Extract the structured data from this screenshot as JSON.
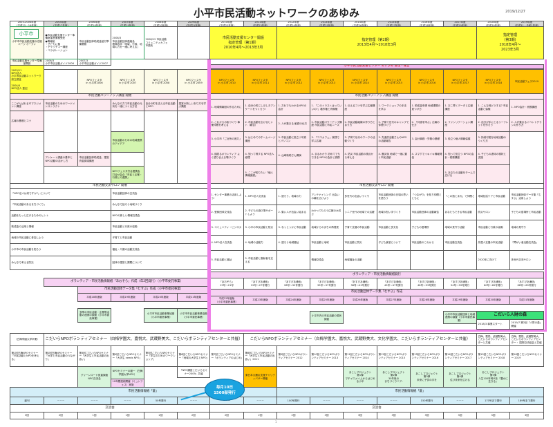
{
  "title": "小平市民活動ネットワークのあゆみ",
  "date": "2019/12/27",
  "years": [
    "2003-2004年度\n(平成15・16年度)",
    "2005年度\n(平成17年度)",
    "2006年度\n(平成18年度)",
    "2007年度\n(平成19年度)",
    "2008年度\n(平成20年度)",
    "2009年度\n(平成21年度)",
    "2010年度\n(平成22年度)",
    "2011年度\n(平成23年度)",
    "2012年度\n(平成24年度)",
    "2013年度\n(平成25年度)",
    "2014年度\n(平成26年度)",
    "2015年度\n(平成27年度)",
    "2016年度\n(平成28年度)",
    "2017年度\n(平成29年度)",
    "2018年度\n(平成30年度)",
    "2019年度\n(平成31・令和1年度)"
  ],
  "top": {
    "logo": "小平市",
    "logo_caption": "小平市市民活動支援の応援ページ オープン",
    "c1": "●市民活動支援センター準備室運営業務受託\n●情報紙\n・子どもに集\n・チャッチコー講座\n・コラボレーション",
    "c2": "市民活動団体助成金給付準備業務",
    "c3": "2008/3\n市民活動団体連絡会\n基準答申「地域、行政、地域の力を一緒に考える」",
    "c4": "2008/12 市民活動\nコミュニティカフェ\n市委託",
    "prep": "市民活動支援センター準備室開設",
    "prep1": "2006/3\n小平市民活動ガイド2006",
    "prep2": "2007/3\n小平市民活動ガイド2007",
    "term1": "市民活動支援センター開設\n指定管理（第1期）\n2010年4月～2013年3月",
    "term2": "指定管理（第2期）\n2013年4月～2018年3月",
    "term3": "指定管理\n(第3期)\n2018年4月～\n2023年3月",
    "center_bar": "小平市民活動支援センター あすぴあ 管理・運営",
    "founding": "2003/11\nNPO法人\n小平市民活動ネットワーク設立認証\n\n2004/4\nNPO法人 登記"
  },
  "festa": [
    "NPOフェスタ\nin 小平市2006",
    "NPOフェスタ\nin 小平市 2007",
    "NPOフェスタ\nin 小平市 2008",
    "NPOフェスタ\nin 小平市 2009",
    "NPOフェスタ\nin 小平市 2010",
    "NPOフェスタ\nin 小平市 2011",
    "NPOフェスタ\nin 小平市 2012",
    "NPOフェスタ\nin 小平市 2013",
    "NPOフェスタ\nin 小平市 2014",
    "NPOフェスタ\nin 小平市 2015",
    "NPOフェスタ\nin 小平市 2016",
    "NPOフェスタ\nin 小平市 2017",
    "NPOフェスタ\nin 小平市 2018",
    "市民活動フェス2019"
  ],
  "powerup": {
    "title": "市民活動パワーアップ講座 開催",
    "left": [
      "ここがんばれるぞマネジメント講座",
      "市民活動のためのワードインストラクト",
      "",
      "みんなの力で市民活動の元気を一緒につくる方法",
      "自分の町を支える市民活動とNPO",
      "運営の新しいあり方を学ぶ講座",
      "広報の基礎とコツ",
      "アンケート調査の基本とNPO活動の活かし方",
      "市民活動団体助成金、運営資金調達講座",
      "市民活動のための地域連携のアイデア",
      "NPOフェスタ打合連携会 打合せ会合「市民と企業・行政との連携」"
    ],
    "right": [
      [
        "1. 地域情報紙の作るために",
        "2. これからの街づくり 事業仲間を考える",
        "3. 小平市「ご近所の底力」",
        "4. 顔見るボランティア よく語り合える場づくり",
        ""
      ],
      [
        "1. 自分の町にしほしきアンケートをつくろう!",
        "2. 市民活動を広げるヒント（報告）",
        "3. はじめてのホームページ講座",
        "4. 知って得する NPO法人経理",
        "5. ここが知りたい「個人情報保護」"
      ],
      [
        "1. だれでもわかるNPOの会計",
        "2. 人が集まる 勧誘の仕方",
        "3. 市民活動に役立つ写真とパソコン",
        "4. 山崎新助さん講演",
        ""
      ],
      [
        "1. 「このイラストはっていいの?」著作権と肖像権",
        "2. 市民活動パワーアップ講座 市民活動と市民ニーズ",
        "3. 「ココカフェ」実践で学ぶ広報",
        "4. まるわかり 初めてでもできる NPOの会計と税務",
        ""
      ],
      [
        "1. 伝えるコツを学ぶ広報講座",
        "2. 市民活動組織の作り方とあり方",
        "3. 子育て世代のワークの活動づくり",
        "4. 防災 市民活動の視点から考える",
        ""
      ],
      [
        "1. ワークショップの手法を学ぶ",
        "2. 子育て世代のキャンプで仲間づくり",
        "3. 先進的活動さんのNPOの活動報告",
        "4. 震災後 地域で一緒に動く市民活動",
        ""
      ],
      [
        "1. 助成金申請 地域課題の見つけ方",
        "2. 「共感を呼ぶ」広報の仕方",
        "3. 会計事務・労務の基礎",
        "4. スマホでイキイキ情報発信",
        ""
      ],
      [
        "1. おこ寄くデータと広報講座",
        "2. ファシリテーション講座",
        "3. 役立つ個人情報保護",
        "4. 知って役立つ NPOの会計・税務講座",
        "5. あなたの活動をチームで広げる"
      ],
      [
        "1. こんな時どうする? 市民活動と保険",
        "2. 自分が手にとるリーフレットを作ろう",
        "3. 持続可能な地域活動のつくり方",
        "4. 子どもの虐待の現状と支援",
        ""
      ],
      [
        "1. NPO会計・税務講座",
        "2. 人が集まるイベントチラシの作り方",
        "",
        "",
        ""
      ]
    ]
  },
  "salon": {
    "title": "市民活動交流サロン 開催",
    "left": [
      "「NPO法人は何ですか?」について",
      "市民活動団体の交流会",
      "「市民活動のあるまちづくり」",
      "みんなで話そう地域づくり",
      "活動をもっと広げるためのヒント",
      "NPOの新しい情報交換会",
      "助成金の活用と情報",
      "市民活動と行政の協働",
      "地域の市民活動に参加しよう",
      "子育てと市民活動",
      "小平市の市民活動を知ろう",
      "福祉・介護の活動交流会",
      "みんなで考える防災",
      "団体の運営と課題について"
    ],
    "right": [
      [
        "1. センター事業の活用しよう!",
        "2. 登録団体交流会",
        "3. コミュニティ・ビジネス",
        "4. NPO法人交流会",
        "5. 市民活動と福祉"
      ],
      [
        "1. NPO法人交流会",
        "2. 子どもの遊び場サポートしよう",
        "3. 小平の市民活動と防災",
        "4. 地域の活動力",
        "5. 市民活動と高齢者を支える"
      ],
      [
        "1. 語ろう、地域の力",
        "2. 集い人が出会い始まる",
        "3. なっとっかに市民活動",
        "4. 語ろう地域福祉",
        ""
      ],
      [
        "アンテナイシング 出会いの輪を広げよう",
        "わかってもらう広報の大切さ",
        "地域からのまちの再発見",
        "市民活動と地域",
        "情報交換会"
      ],
      [
        "多世代の出会いづくり",
        "シニア世代の地域での活躍",
        "子育て支援の市民活動",
        "市民活動と防災",
        "地域福祉の活動"
      ],
      [
        "市民活動団体の日頃の思いを語ろう",
        "地域の担い手づくり",
        "市民活動と多文化",
        "子ども食堂について",
        ""
      ],
      [
        "「つながり」を知り仲間とともに",
        "市民活動団体の活動報告",
        "子どもの居場所",
        "市民活動のこれから",
        ""
      ],
      [
        "「この指とまれ」で仲間と",
        "あなたもできる市民活動",
        "地域の見守り活動",
        "市民活動交流会",
        ""
      ],
      [
        "地域包括ケアと市民活動",
        "防災サロン",
        "市民活動と行政の協働",
        "外国人支援の市民活動",
        "2020年に向けて"
      ],
      [
        "市民活動団体データ集「むすぶ」活用しよう",
        "子どもの居場所と市民活動",
        "地域の見守り",
        "「障がい者活動交流会」",
        "多世代交流サロン"
      ]
    ]
  },
  "info": {
    "title": "ボランティア・市民活動情報紙発行",
    "left": "ボランティア・市民活動情報紙「あおぞら」作成（年2回発行）（小平市委託事業）",
    "issues": [
      "「あおぞら」\n19号～21号",
      "「あすぴあ通信」\n22号～27号発行",
      "「あすぴあ通信」\n28号～32号発行",
      "「あすぴあ通信」\n33号～37号発行",
      "「あすぴあ通信」\n38号～42号発行",
      "「あすぴあ通信」\n43号～47号発行",
      "「あすぴあ通信」\n48号～53号発行",
      "「あすぴあ通信」\n54号～59号発行",
      "「あすぴあ通信」\n60号～65号発行",
      "「あすぴあ通信」\n66号～69号発行"
    ]
  },
  "databook": {
    "left_title": "市民活動団体データ集「むすぶ」作成（小平市委託事業）",
    "right_title": "市民活動団体データ集「むすぶ」作成",
    "years": [
      "平成18年度版",
      "平成19年度版",
      "平成20年度版",
      "平成21年度版",
      "平成22年度版\n（小平市委託事業）",
      "平成23年度版",
      "平成24年度版",
      "平成25年度版",
      "平成26年度版",
      "平成27年度版",
      "平成28年度版",
      "平成29年度版",
      "平成30年度版",
      "平成31年度版"
    ],
    "extra": [
      "多摩の市民活動・企業等活動の連携の調査（小平市委託事業）",
      "小平市市民活動事業協働（小平市委託事業）",
      "小平市市民活動事業協働（小平市委託事業）",
      "小平市内の市民活動の現状調査",
      "小平市市民活動団体と地域連携の調査（小平市委託事業）"
    ],
    "jinzai": "こだいら人財の森",
    "jinzai1": "2018/3 事業スタート",
    "jinzai2": "2019/7 第2回「人財の森」開催"
  },
  "seminar": {
    "c0": "（白梅学園大学卒業）",
    "banner1": "こだいらNPOボランティアセミナー（白梅学園大、嘉悦大、武蔵野美大、こだいらボランティアセンターと共催）",
    "banner2": "こだいらNPOボランティアセミナー（白梅学園大、嘉悦大、武蔵野美大、文化学園大、こだいらボランティアセンターと共催）",
    "c14": "白梅、嘉悦、武蔵野美大、こだいらボランティアセンターと共催",
    "c15": "白梅、嘉悦、武蔵野美大、こだいらボランティアセンター・ 国際交流協会と共催",
    "cells": [
      "第1回白梅NPOセミナー「市民活動とNPOを考える」",
      "第2回白梅NPOセミナー「大学と市民活動のつながり」",
      "第3回こだいらNPOセミナー「大学生と市民活動の出会い」",
      "第4回こだいらNPOセミナー「大学生 needs NPO」",
      "第5回こだいらNPOセミナー「学生のためのワークショップ」",
      "第6回こだいらNPOセミナー「地域の大学生とNPO」",
      "第7回こだいらNPOセミナー「ボランティアのはじめ」",
      "第8回こだいらNPOセミナー「大学生と市民活動の出会い」2011",
      "第9回こだいらNPOボランティアセミナー 2012",
      "第10回こだいらNPOボランティアセミナー 2013",
      "第11回こだいらNPOボランティアセミナー 2014",
      "第12回こだいらNPOボランティアセミナー 2015",
      "第13回こだいらNPOボランティアセミナー 2016",
      "第14回こだいらNPOボランティアセミナー 2017",
      "第15回こだいらNPOボランティアセミナー 2018",
      "第16回こだいらNPOセミナー 2019"
    ],
    "low": [
      "グリーンロード見直調査\nNPO交流会",
      "NPOセミナーの継一（白梅学園大学NPO）",
      "「NPO講座こだいらセミナー2009」共催",
      "東日本大震災支援チャリティバザー開催",
      "あこしプロジェクト\n第1弾\nマチイロメイムからはじめる小平",
      "あこしプロジェクト\n第2弾\n30年後の\nまちづくりニア-",
      "あこしプロジェクト\n第3弾\n未来に子供の手を",
      "あこしプロジェクト\n第4弾\n住び未来を広げる",
      "あこしプロジェクト\n第5弾\n人生100年時代を「豊かに生きる」"
    ],
    "pink_low": "10年間連続開催（ミュンフェス）実施"
  },
  "ao": {
    "label_left": "市民活動情報紙「蒼」",
    "label_right": "市民活動情報紙「蒼」",
    "bubble1": "毎月10日",
    "bubble2": "1500部発行",
    "issues": [
      "創刊",
      "－－－",
      "－－－",
      "－－－",
      "50号発行",
      "－－－",
      "－－－",
      "－－－",
      "100号発行",
      "－－－",
      "－－－",
      "－－－",
      "150号発行",
      "－－－",
      "170号まで発行",
      "189号まで発行"
    ]
  },
  "koryu": {
    "label_left": "交流会",
    "label_right": "交流会",
    "counts": [
      "3回",
      "2回",
      "1回",
      "1回",
      "2回",
      "2回",
      "2回",
      "2回",
      "2回",
      "3回",
      "3回",
      "3回",
      "3回",
      "3回",
      "3回",
      "3回"
    ]
  },
  "page_number": "1"
}
